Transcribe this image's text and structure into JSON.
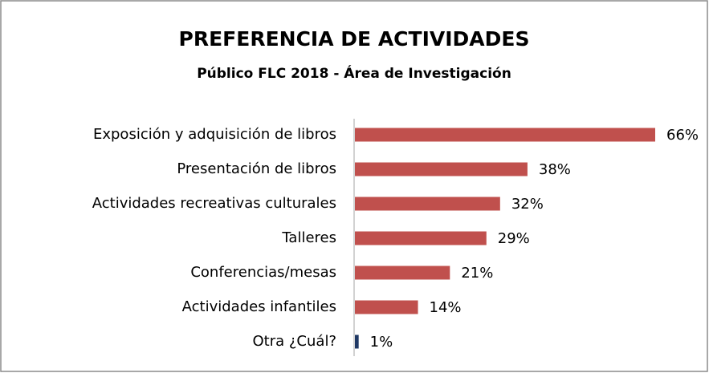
{
  "chart_data": {
    "type": "bar",
    "orientation": "horizontal",
    "title": "PREFERENCIA  DE ACTIVIDADES",
    "subtitle": "Público FLC 2018 - Área de Investigación",
    "categories": [
      "Exposición y adquisición de libros",
      "Presentación de libros",
      "Actividades recreativas culturales",
      "Talleres",
      "Conferencias/mesas",
      "Actividades infantiles",
      "Otra ¿Cuál?"
    ],
    "values": [
      66,
      38,
      32,
      29,
      21,
      14,
      1
    ],
    "value_labels": [
      "66%",
      "38%",
      "32%",
      "29%",
      "21%",
      "14%",
      "1%"
    ],
    "colors": [
      "#c0504d",
      "#c0504d",
      "#c0504d",
      "#c0504d",
      "#c0504d",
      "#c0504d",
      "#1f3864"
    ]
  }
}
